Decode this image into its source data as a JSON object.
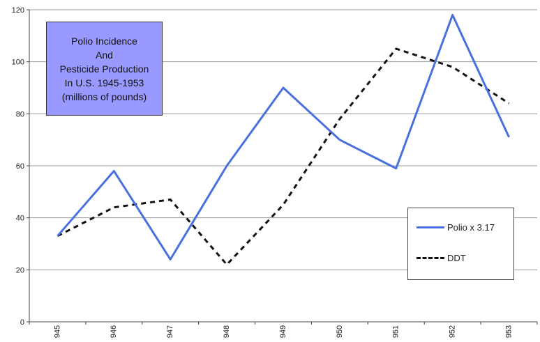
{
  "chart_data": {
    "type": "line",
    "title_lines": [
      "Polio Incidence",
      "And",
      "Pesticide Production",
      "In U.S. 1945-1953",
      "(millions of pounds)"
    ],
    "categories": [
      "945",
      "946",
      "947",
      "948",
      "949",
      "950",
      "951",
      "952",
      "953"
    ],
    "yticks": [
      "0",
      "20",
      "40",
      "60",
      "80",
      "100",
      "120"
    ],
    "ylim": [
      0,
      120
    ],
    "grid": true,
    "legend_position": "bottom-right",
    "series": [
      {
        "name": "Polio x 3.17",
        "color": "#4a6fe0",
        "style": "solid",
        "values": [
          33,
          58,
          24,
          60,
          90,
          70,
          59,
          118,
          71
        ]
      },
      {
        "name": "DDT",
        "color": "#111111",
        "style": "dashed",
        "values": [
          33,
          44,
          47,
          22,
          45,
          78,
          105,
          98,
          84
        ]
      }
    ]
  }
}
